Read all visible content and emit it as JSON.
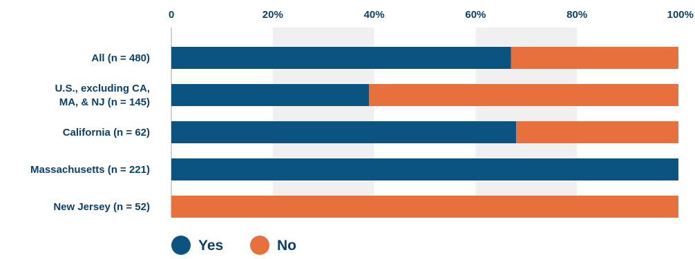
{
  "chart_data": {
    "type": "bar",
    "orientation": "horizontal",
    "stacked": true,
    "categories": [
      [
        "All (n = 480)"
      ],
      [
        "U.S., excluding CA,",
        "MA, & NJ (n = 145)"
      ],
      [
        "California (n = 62)"
      ],
      [
        "Massachusetts  (n = 221)"
      ],
      [
        "New Jersey (n = 52)"
      ]
    ],
    "series": [
      {
        "name": "Yes",
        "values": [
          67,
          39,
          68,
          100,
          0
        ]
      },
      {
        "name": "No",
        "values": [
          33,
          61,
          32,
          0,
          100
        ]
      }
    ],
    "x_ticks": [
      "0",
      "20%",
      "40%",
      "60%",
      "80%",
      "100%"
    ],
    "xlim": [
      0,
      100
    ],
    "x_unit": "percent",
    "x_axis_position": "top",
    "grid": "alternating vertical bands",
    "legend_position": "bottom-left",
    "title": "",
    "xlabel": "",
    "ylabel": "",
    "colors": {
      "Yes": "#0b5380",
      "No": "#e8703c",
      "text": "#0b3f6b",
      "band": "#f0f0f0",
      "axis": "#a0a0a0"
    }
  }
}
